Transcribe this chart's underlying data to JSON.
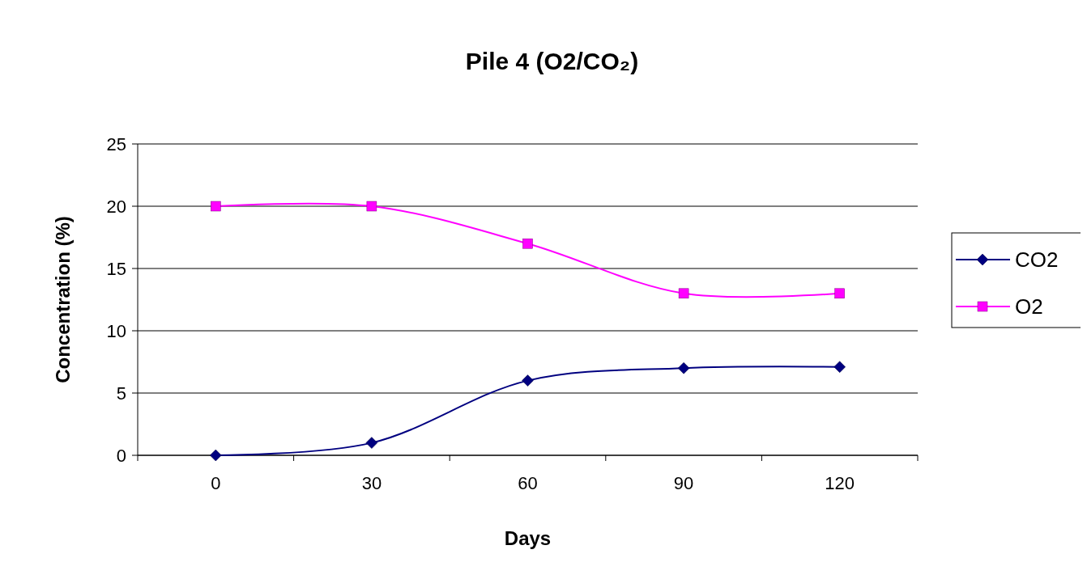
{
  "chart_data": {
    "type": "line",
    "title": "Pile 4 (O2/CO₂)",
    "xlabel": "Days",
    "ylabel": "Concentration (%)",
    "categories": [
      "0",
      "30",
      "60",
      "90",
      "120"
    ],
    "series": [
      {
        "name": "CO2",
        "color": "#000080",
        "values": [
          0,
          1,
          6,
          7,
          7.1
        ],
        "marker": "diamond"
      },
      {
        "name": "O2",
        "color": "#ff00ff",
        "values": [
          20,
          20,
          17,
          13,
          13
        ],
        "marker": "square"
      }
    ],
    "ylim": [
      0,
      25
    ],
    "yticks": [
      0,
      5,
      10,
      15,
      20,
      25
    ],
    "grid": "y",
    "legend": "right",
    "line_style": "solid"
  }
}
